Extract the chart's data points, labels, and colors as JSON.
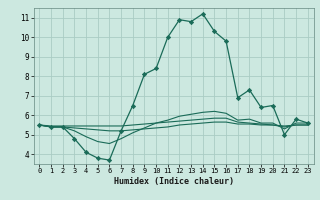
{
  "xlabel": "Humidex (Indice chaleur)",
  "bg_color": "#cce8e0",
  "grid_color": "#aaccc4",
  "line_color": "#1a6b58",
  "xlim": [
    -0.5,
    23.5
  ],
  "ylim": [
    3.5,
    11.5
  ],
  "xticks": [
    0,
    1,
    2,
    3,
    4,
    5,
    6,
    7,
    8,
    9,
    10,
    11,
    12,
    13,
    14,
    15,
    16,
    17,
    18,
    19,
    20,
    21,
    22,
    23
  ],
  "yticks": [
    4,
    5,
    6,
    7,
    8,
    9,
    10,
    11
  ],
  "series": [
    {
      "x": [
        0,
        1,
        2,
        3,
        4,
        5,
        6,
        7,
        8,
        9,
        10,
        11,
        12,
        13,
        14,
        15,
        16,
        17,
        18,
        19,
        20,
        21,
        22,
        23
      ],
      "y": [
        5.5,
        5.4,
        5.4,
        4.8,
        4.1,
        3.8,
        3.7,
        5.2,
        6.5,
        8.1,
        8.4,
        10.0,
        10.9,
        10.8,
        11.2,
        10.3,
        9.8,
        6.9,
        7.3,
        6.4,
        6.5,
        5.0,
        5.8,
        5.6
      ],
      "marker": true
    },
    {
      "x": [
        0,
        1,
        2,
        3,
        4,
        5,
        6,
        7,
        8,
        9,
        10,
        11,
        12,
        13,
        14,
        15,
        16,
        17,
        18,
        19,
        20,
        21,
        22,
        23
      ],
      "y": [
        5.5,
        5.45,
        5.45,
        5.45,
        5.45,
        5.45,
        5.45,
        5.45,
        5.5,
        5.55,
        5.6,
        5.65,
        5.7,
        5.75,
        5.8,
        5.85,
        5.85,
        5.65,
        5.6,
        5.55,
        5.5,
        5.45,
        5.5,
        5.5
      ],
      "marker": false
    },
    {
      "x": [
        0,
        1,
        2,
        3,
        4,
        5,
        6,
        7,
        8,
        9,
        10,
        11,
        12,
        13,
        14,
        15,
        16,
        17,
        18,
        19,
        20,
        21,
        22,
        23
      ],
      "y": [
        5.5,
        5.4,
        5.4,
        5.35,
        5.3,
        5.25,
        5.2,
        5.2,
        5.25,
        5.3,
        5.35,
        5.4,
        5.5,
        5.55,
        5.6,
        5.65,
        5.65,
        5.55,
        5.55,
        5.5,
        5.5,
        5.4,
        5.5,
        5.5
      ],
      "marker": false
    },
    {
      "x": [
        0,
        1,
        2,
        3,
        4,
        5,
        6,
        7,
        8,
        9,
        10,
        11,
        12,
        13,
        14,
        15,
        16,
        17,
        18,
        19,
        20,
        21,
        22,
        23
      ],
      "y": [
        5.5,
        5.4,
        5.4,
        5.2,
        4.9,
        4.65,
        4.55,
        4.8,
        5.1,
        5.35,
        5.6,
        5.75,
        5.95,
        6.05,
        6.15,
        6.2,
        6.1,
        5.75,
        5.8,
        5.6,
        5.6,
        5.3,
        5.6,
        5.6
      ],
      "marker": false
    }
  ]
}
